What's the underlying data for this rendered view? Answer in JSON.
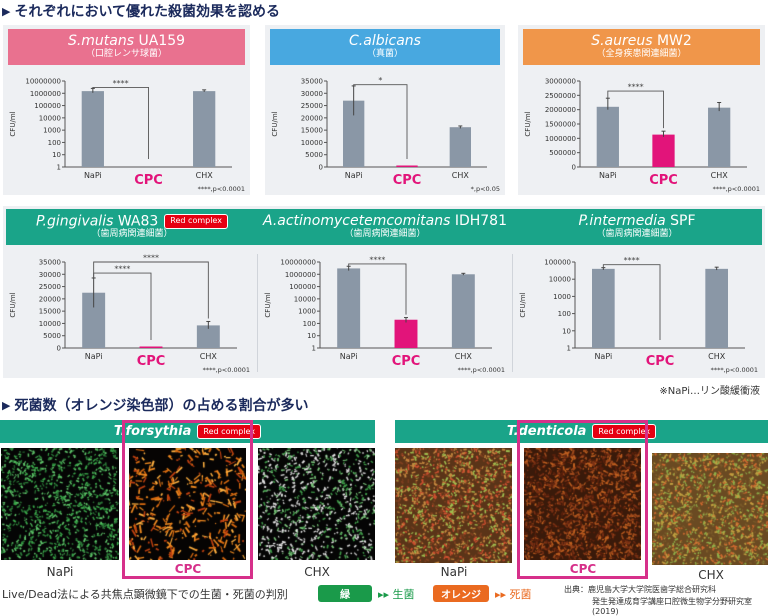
{
  "section1_title": "それぞれにおいて優れた殺菌効果を認める",
  "section2_title": "死菌数（オレンジ染色部）の占める割合が多い",
  "red_complex": "Red complex",
  "napi_note": "※NaPi…リン酸緩衝液",
  "colors": {
    "bar": "#8a97a6",
    "cpc": "#e2147a",
    "pink": "#e9718f",
    "blue": "#48a8e0",
    "orange": "#f0964a",
    "green": "#1aa489"
  },
  "panels": [
    {
      "title_italic": "S.mutans",
      "title_rest": "UA159",
      "subtitle": "（口腔レンサ球菌）",
      "red_complex": false
    },
    {
      "title_italic": "C.albicans",
      "title_rest": "",
      "subtitle": "（真菌）",
      "red_complex": false
    },
    {
      "title_italic": "S.aureus",
      "title_rest": "MW2",
      "subtitle": "（全身疾患関連細菌）",
      "red_complex": false
    },
    {
      "title_italic": "P.gingivalis",
      "title_rest": "WA83",
      "subtitle": "（歯周病関連細菌）",
      "red_complex": true
    },
    {
      "title_italic": "A.actinomycetemcomitans",
      "title_rest": "IDH781",
      "subtitle": "（歯周病関連細菌）",
      "red_complex": false
    },
    {
      "title_italic": "P.intermedia",
      "title_rest": "SPF",
      "subtitle": "（歯周病関連細菌）",
      "red_complex": false
    }
  ],
  "chart_data": [
    {
      "type": "bar",
      "ylabel": "CFU/ml",
      "scale": "log",
      "ylim": [
        1,
        10000000
      ],
      "yticks": [
        "1",
        "10",
        "100",
        "1000",
        "10000",
        "100000",
        "1000000",
        "10000000"
      ],
      "categories": [
        "NaPi",
        "CPC",
        "CHX"
      ],
      "values": [
        1500000,
        0,
        1500000
      ],
      "errors": [
        [
          1100000,
          2500000
        ],
        null,
        [
          1300000,
          1900000
        ]
      ],
      "brackets": [
        {
          "from": 0,
          "to": 1,
          "label": "****",
          "level": 3000000
        }
      ],
      "note": "****,p<0.0001"
    },
    {
      "type": "bar",
      "ylabel": "CFU/ml",
      "scale": "linear",
      "ylim": [
        0,
        35000
      ],
      "yticks": [
        "0",
        "5000",
        "10000",
        "15000",
        "20000",
        "25000",
        "30000",
        "35000"
      ],
      "categories": [
        "NaPi",
        "CPC",
        "CHX"
      ],
      "values": [
        27000,
        100,
        16200
      ],
      "errors": [
        [
          21000,
          33000
        ],
        null,
        [
          15700,
          16700
        ]
      ],
      "brackets": [
        {
          "from": 0,
          "to": 1,
          "label": "*",
          "level": 33500
        }
      ],
      "note": "*,p<0.05"
    },
    {
      "type": "bar",
      "ylabel": "CFU/ml",
      "scale": "linear",
      "ylim": [
        0,
        3000000
      ],
      "yticks": [
        "0",
        "500000",
        "1000000",
        "1500000",
        "2000000",
        "2500000",
        "3000000"
      ],
      "categories": [
        "NaPi",
        "CPC",
        "CHX"
      ],
      "values": [
        2100000,
        1130000,
        2070000
      ],
      "errors": [
        [
          2000000,
          2400000
        ],
        [
          1050000,
          1250000
        ],
        [
          1950000,
          2250000
        ]
      ],
      "brackets": [
        {
          "from": 0,
          "to": 1,
          "label": "****",
          "level": 2650000
        }
      ],
      "note": "****,p<0.0001"
    },
    {
      "type": "bar",
      "ylabel": "CFU/ml",
      "scale": "linear",
      "ylim": [
        0,
        35000
      ],
      "yticks": [
        "0",
        "5000",
        "10000",
        "15000",
        "20000",
        "25000",
        "30000",
        "35000"
      ],
      "categories": [
        "NaPi",
        "CPC",
        "CHX"
      ],
      "values": [
        22500,
        200,
        9200
      ],
      "errors": [
        [
          16500,
          28500
        ],
        null,
        [
          7800,
          10800
        ]
      ],
      "brackets": [
        {
          "from": 0,
          "to": 1,
          "label": "****",
          "level": 30500
        },
        {
          "from": 0,
          "to": 2,
          "label": "****",
          "level": 35000
        }
      ],
      "note": "****,p<0.0001"
    },
    {
      "type": "bar",
      "ylabel": "CFU/ml",
      "scale": "log",
      "ylim": [
        1,
        10000000
      ],
      "yticks": [
        "1",
        "10",
        "100",
        "1000",
        "10000",
        "100000",
        "1000000",
        "10000000"
      ],
      "categories": [
        "NaPi",
        "CPC",
        "CHX"
      ],
      "values": [
        3000000,
        200,
        1000000
      ],
      "errors": [
        [
          2000000,
          4500000
        ],
        [
          120,
          300
        ],
        [
          850000,
          1200000
        ]
      ],
      "brackets": [
        {
          "from": 0,
          "to": 1,
          "label": "****",
          "level": 7000000
        }
      ],
      "note": "****,p<0.0001"
    },
    {
      "type": "bar",
      "ylabel": "CFU/ml",
      "scale": "log",
      "ylim": [
        1,
        100000
      ],
      "yticks": [
        "1",
        "10",
        "100",
        "1000",
        "10000",
        "100000"
      ],
      "categories": [
        "NaPi",
        "CPC",
        "CHX"
      ],
      "values": [
        40000,
        0,
        40000
      ],
      "errors": [
        [
          35000,
          47000
        ],
        null,
        [
          34000,
          50000
        ]
      ],
      "brackets": [
        {
          "from": 0,
          "to": 1,
          "label": "****",
          "level": 70000
        }
      ],
      "note": "****,p<0.0001"
    }
  ],
  "microscopy": [
    {
      "title": "T.forsythia",
      "red_complex": true,
      "labels": [
        "NaPi",
        "CPC",
        "CHX"
      ]
    },
    {
      "title": "T.denticola",
      "red_complex": true,
      "labels": [
        "NaPi",
        "CPC",
        "CHX"
      ]
    }
  ],
  "footer": {
    "method": "Live/Dead法による共焦点顕微鏡下での生菌・死菌の判別",
    "green_chip": "緑",
    "live": "▸▸ 生菌",
    "orange_chip": "オレンジ",
    "dead": "▸▸ 死菌",
    "source_line1": "出典：鹿児島大学大学院医歯学総合研究科",
    "source_line2": "発生発達成育学講座口腔微生物学分野研究室(2019)"
  }
}
